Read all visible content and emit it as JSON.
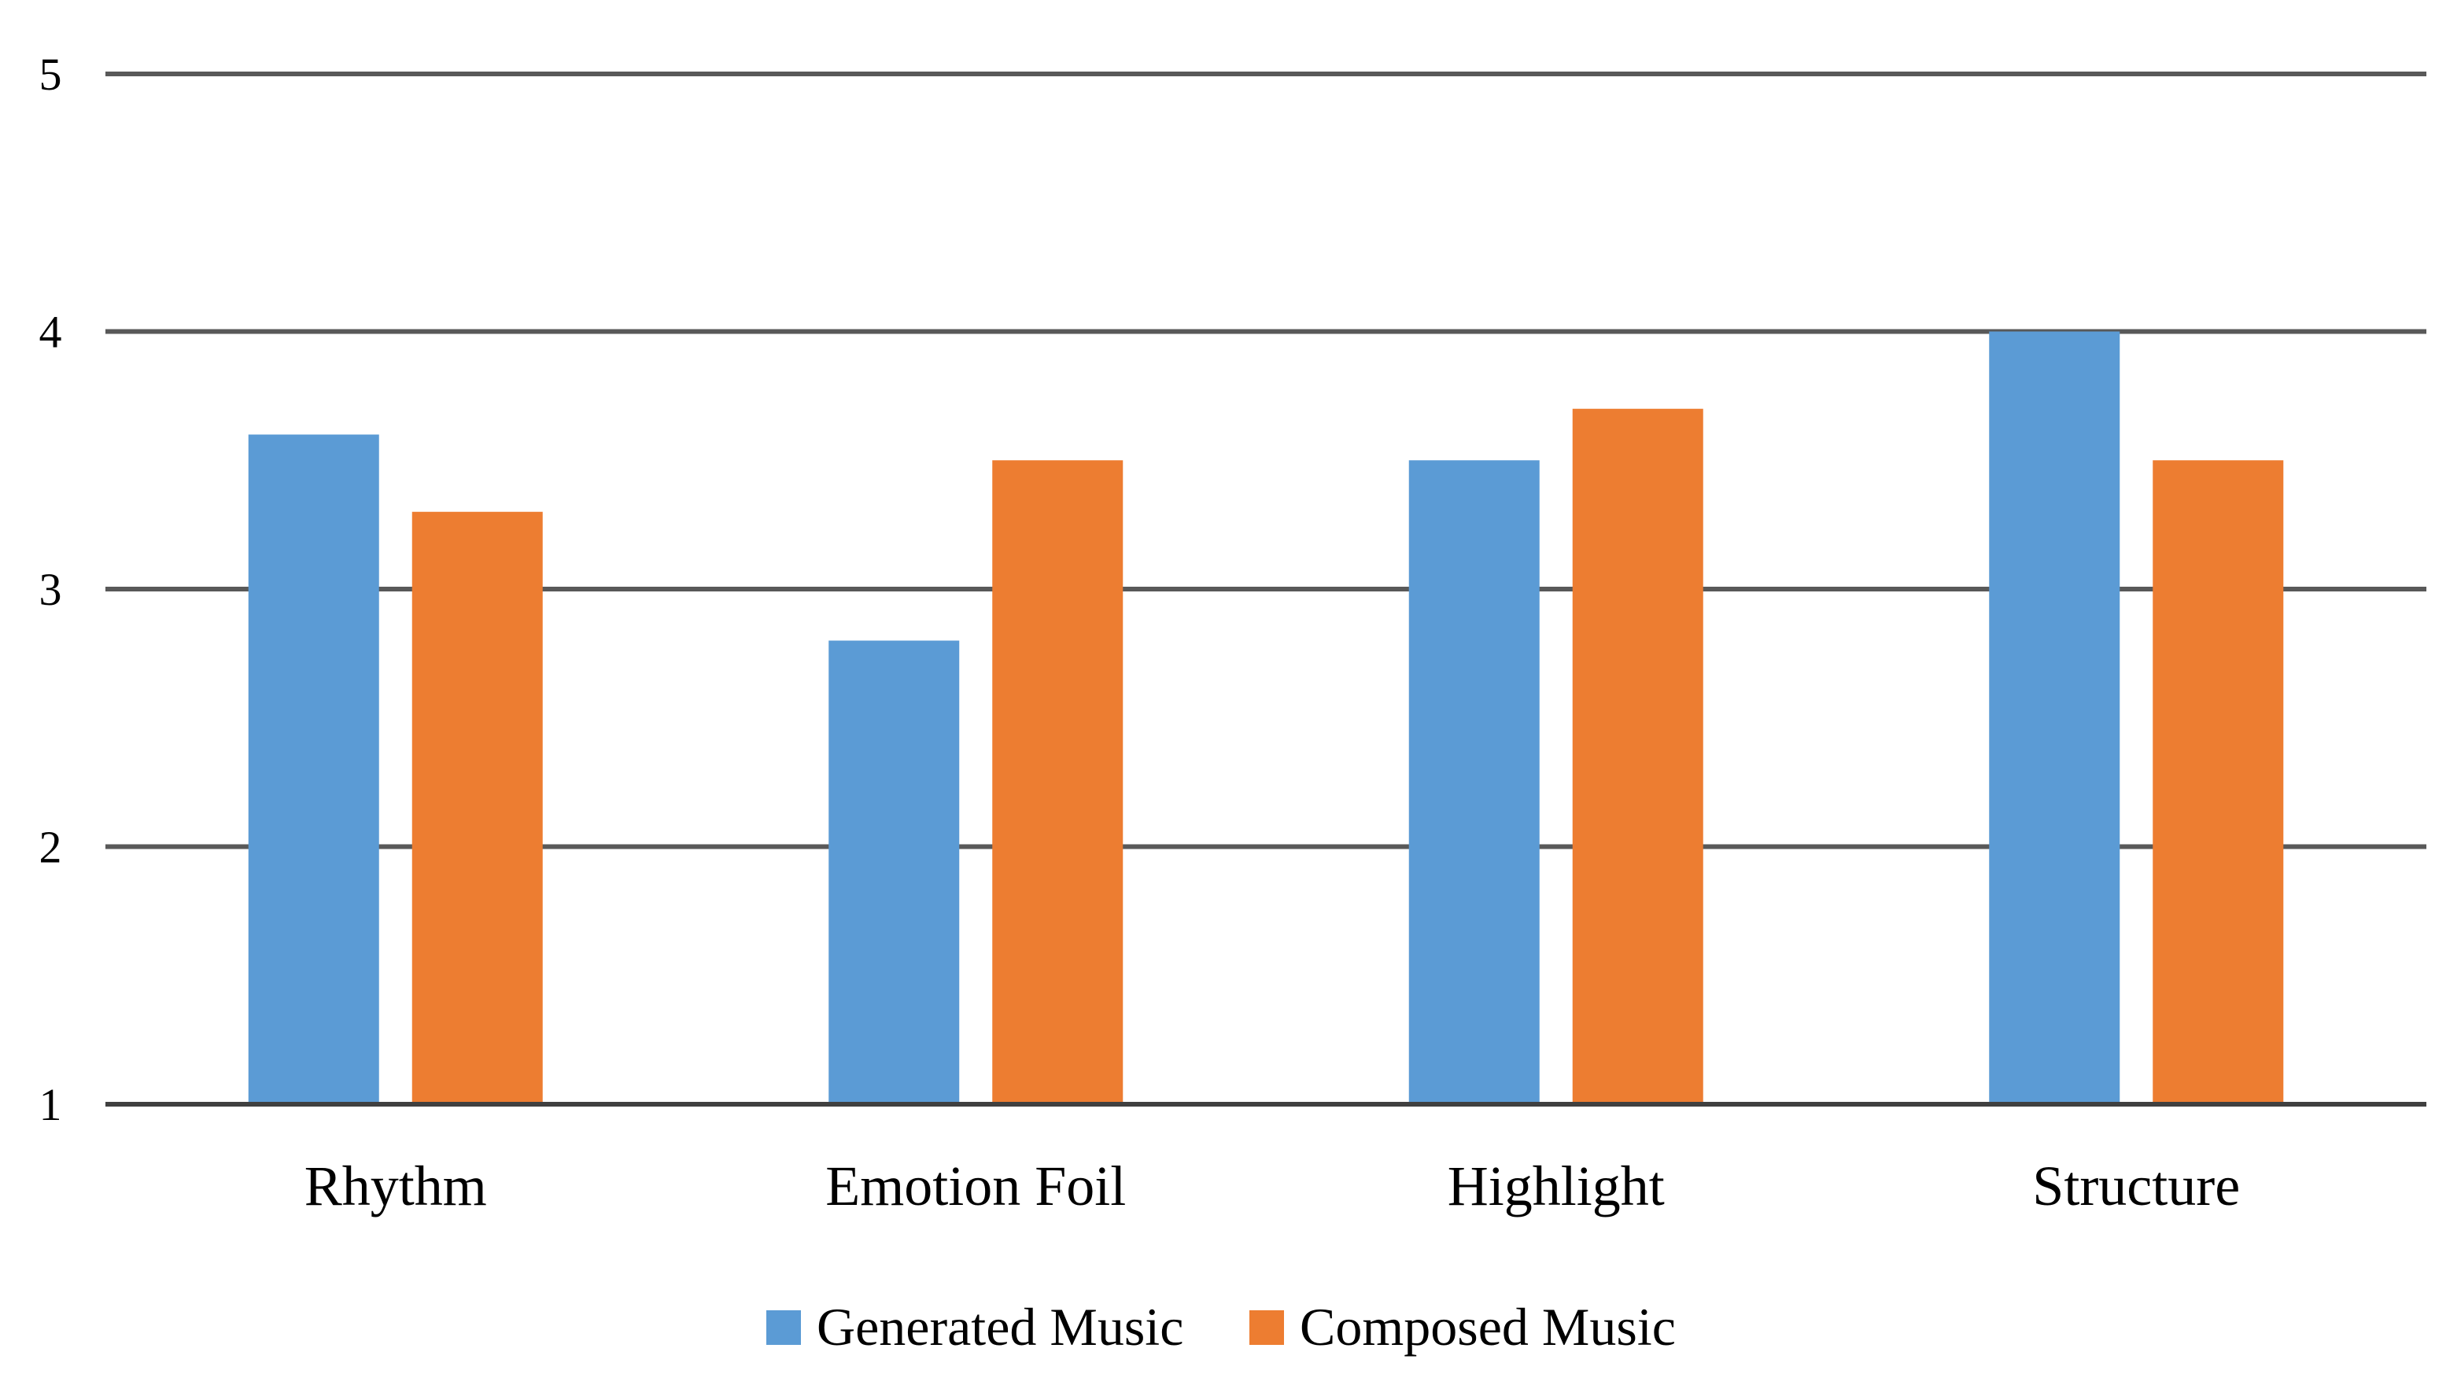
{
  "chart_data": {
    "type": "bar",
    "title": "",
    "xlabel": "",
    "ylabel": "",
    "categories": [
      "Rhythm",
      "Emotion Foil",
      "Highlight",
      "Structure"
    ],
    "series": [
      {
        "name": "Generated Music",
        "color": "#5B9BD5",
        "values": [
          3.6,
          2.8,
          3.5,
          4.0
        ]
      },
      {
        "name": "Composed Music",
        "color": "#ED7D31",
        "values": [
          3.3,
          3.5,
          3.7,
          3.5
        ]
      }
    ],
    "ylim": [
      1,
      5
    ],
    "yticks": [
      "1",
      "2",
      "3",
      "4",
      "5"
    ],
    "grid": true,
    "legend_position": "bottom"
  }
}
